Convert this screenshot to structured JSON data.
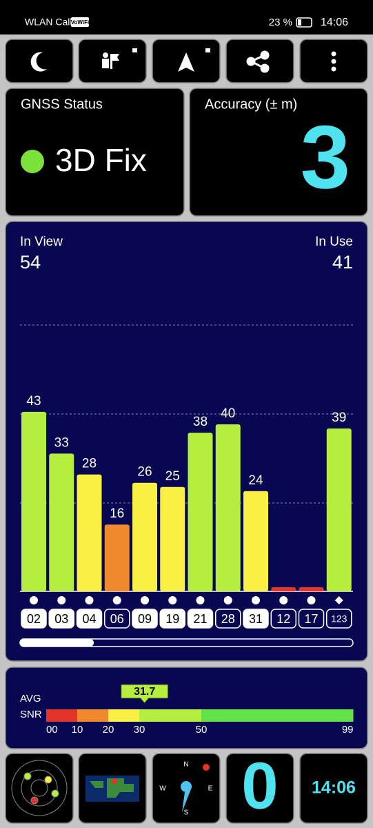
{
  "status_bar": {
    "left": "WLAN Call",
    "badge": "VoWiFi",
    "battery": "23 %",
    "time": "14:06"
  },
  "gnss": {
    "title": "GNSS Status",
    "fix": "3D Fix"
  },
  "accuracy": {
    "title": "Accuracy (± m)",
    "value": 3
  },
  "satellites": {
    "in_view_label": "In View",
    "in_view": 54,
    "in_use_label": "In Use",
    "in_use": 41,
    "ids": [
      "02",
      "03",
      "04",
      "06",
      "09",
      "19",
      "21",
      "28",
      "31",
      "12",
      "17",
      "123"
    ],
    "snr": [
      43,
      33,
      28,
      16,
      26,
      25,
      38,
      40,
      24,
      1,
      1,
      39
    ],
    "value_labels": [
      "43",
      "33",
      "28",
      "16",
      "26",
      "25",
      "38",
      "40",
      "24",
      null,
      null,
      "39"
    ],
    "used": [
      true,
      true,
      true,
      false,
      true,
      true,
      true,
      false,
      true,
      false,
      false,
      false
    ],
    "markers": [
      "circle",
      "circle",
      "circle",
      "circle",
      "circle",
      "circle",
      "circle",
      "circle",
      "circle",
      "circle",
      "circle",
      "diamond"
    ]
  },
  "snr_scale": {
    "label_lines": [
      "AVG",
      "SNR"
    ],
    "average": 31.7,
    "ticks": [
      {
        "value": 0,
        "label": "00"
      },
      10,
      20,
      30,
      50,
      99
    ],
    "colors": [
      "#e4342a",
      "#f0892e",
      "#f9f043",
      "#b5ee3c",
      "#64e24a"
    ]
  },
  "bottom": {
    "counter": 0,
    "clock": "14:06",
    "compass": [
      "N",
      "E",
      "S",
      "W"
    ]
  }
}
